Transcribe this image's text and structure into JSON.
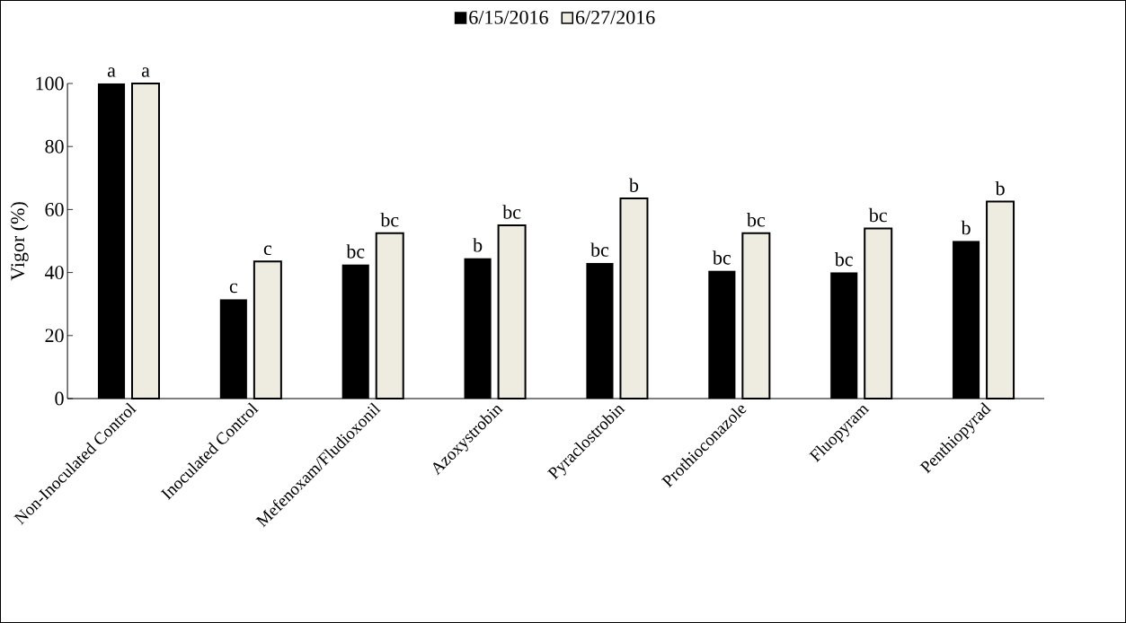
{
  "chart_data": {
    "type": "bar",
    "ylabel": "Vigor (%)",
    "categories": [
      "Non-Inoculated Control",
      "Inoculated Control",
      "Mefenoxam/Fludioxonil",
      "Azoxystrobin",
      "Pyraclostrobin",
      "Prothioconazole",
      "Fluopyram",
      "Penthiopyrad"
    ],
    "series": [
      {
        "name": "6/15/2016",
        "color": "#000000",
        "values": [
          100,
          31.5,
          42.5,
          44.5,
          43,
          40.5,
          40,
          50
        ]
      },
      {
        "name": "6/27/2016",
        "color": "#eeebe0",
        "values": [
          100,
          43.5,
          52.5,
          55,
          63.5,
          52.5,
          54,
          62.5
        ]
      }
    ],
    "ylim": [
      0,
      100
    ],
    "yticks": [
      0,
      20,
      40,
      60,
      80,
      100
    ],
    "grid": false,
    "legend": "top",
    "annotations": [
      "a",
      "a",
      "c",
      "c",
      "bc",
      "bc",
      "b",
      "bc",
      "bc",
      "b",
      "bc",
      "bc",
      "bc",
      "bc",
      "b",
      "b"
    ]
  }
}
